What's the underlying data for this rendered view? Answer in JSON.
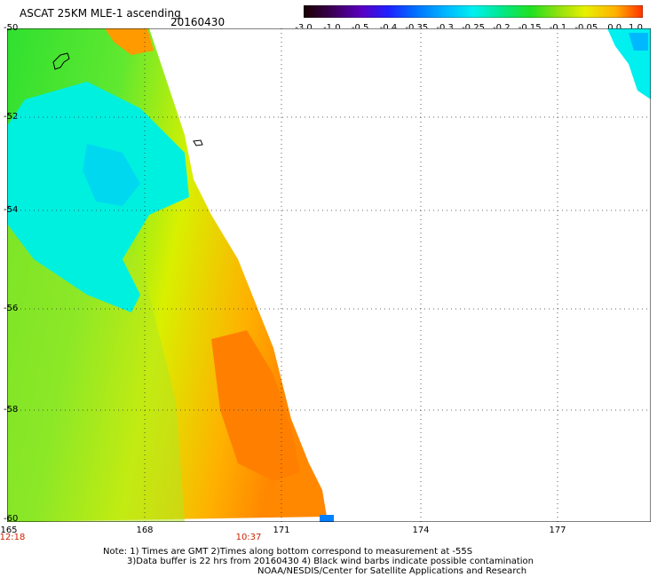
{
  "header": {
    "title": "ASCAT 25KM MLE-1 ascending",
    "date": "20160430"
  },
  "colorbar": {
    "labels": [
      "-3.0",
      "-1.0",
      "-0.5",
      "-0.4",
      "-0.35",
      "-0.3",
      "-0.25",
      "-0.2",
      "-0.15",
      "-0.1",
      "-0.05",
      "0.0",
      "1.0"
    ],
    "colors": [
      "#1a0000",
      "#3a0050",
      "#5a00c0",
      "#2020ff",
      "#0070ff",
      "#00b8ff",
      "#00f0f0",
      "#00e890",
      "#20e020",
      "#90e010",
      "#e8f000",
      "#ffb000",
      "#ff3000"
    ]
  },
  "axes": {
    "lat_labels": [
      "-50",
      "-52",
      "-54",
      "-56",
      "-58",
      "-60"
    ],
    "lon_labels": [
      "165",
      "168",
      "171",
      "174",
      "177"
    ],
    "time_labels": [
      "12:18",
      "10:37"
    ]
  },
  "notes": {
    "line1": "Note: 1) Times are GMT 2)Times along bottom correspond to measurement at -55S",
    "line2": "3)Data buffer is 22 hrs from 20160430 4) Black wind barbs indicate possible contamination",
    "line3": "NOAA/NESDIS/Center for Satellite Applications and Research"
  }
}
